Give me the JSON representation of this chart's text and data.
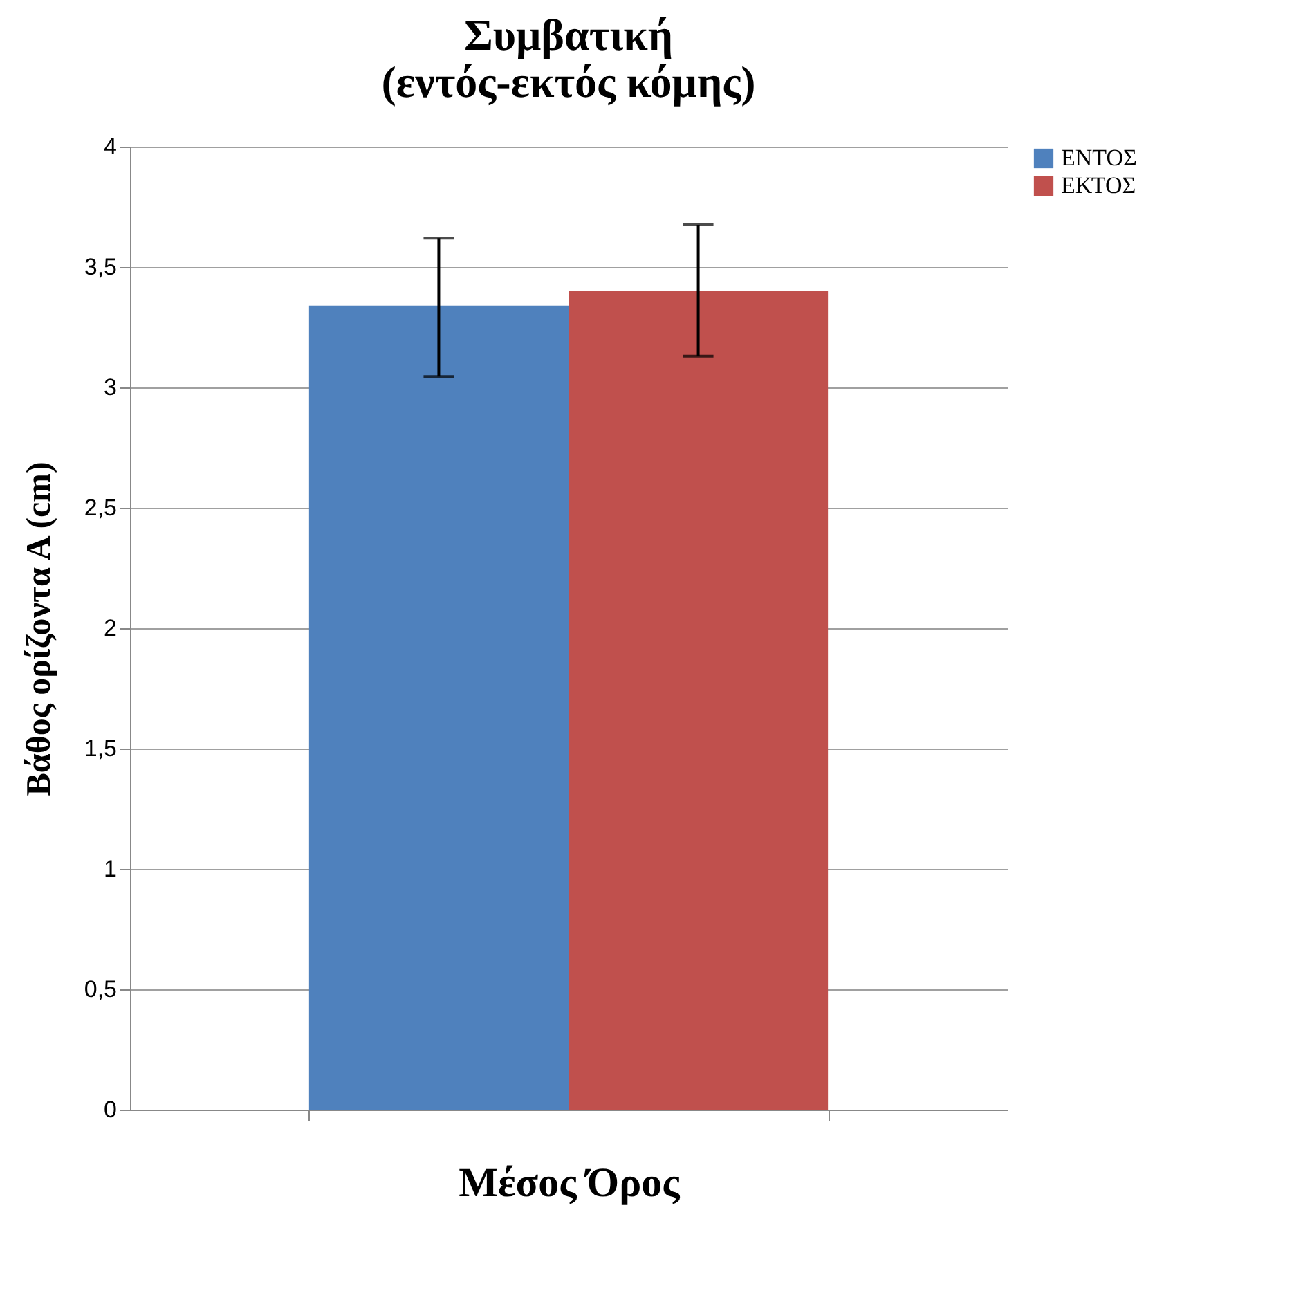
{
  "chart_data": {
    "type": "bar",
    "title": "Συμβατική\n(εντός-εκτός κόμης)",
    "ylabel": "Βάθος ορίζοντα Α (cm)",
    "categories": [
      "Μέσος Όρος"
    ],
    "series": [
      {
        "name": "ΕΝΤΟΣ",
        "color": "#4f81bd",
        "values": [
          3.34
        ],
        "errors": [
          [
            3.045,
            3.62
          ]
        ]
      },
      {
        "name": "ΕΚΤΟΣ",
        "color": "#c0504d",
        "values": [
          3.4
        ],
        "errors": [
          [
            3.13,
            3.675
          ]
        ]
      }
    ],
    "ylim": [
      0,
      4
    ],
    "yticks": [
      0,
      {
        "value": 0.5,
        "label": "0,5"
      },
      1,
      {
        "value": 1.5,
        "label": "1,5"
      },
      2,
      {
        "value": 2.5,
        "label": "2,5"
      },
      3,
      {
        "value": 3.5,
        "label": "3,5"
      },
      4
    ],
    "grid": "y",
    "legend": "right"
  }
}
